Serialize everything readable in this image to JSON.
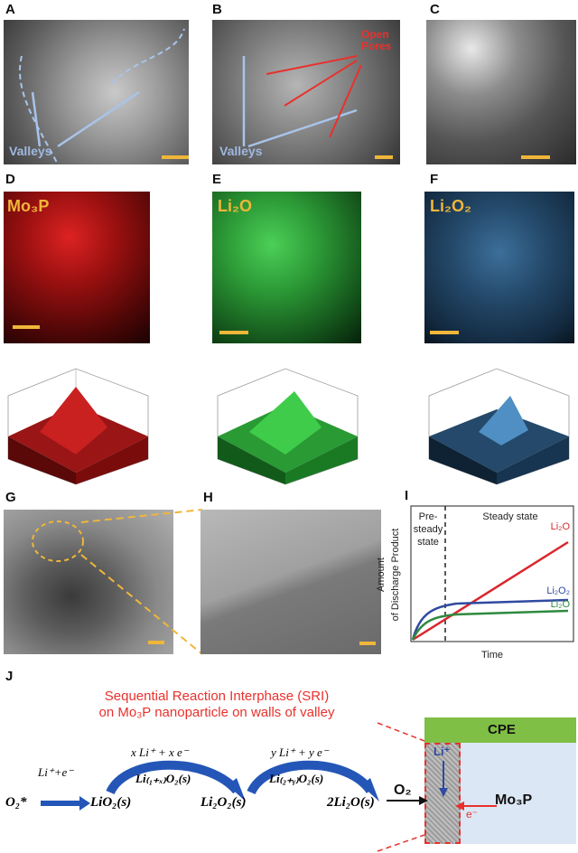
{
  "panels": {
    "a": {
      "label": "A",
      "valleys": "Valleys"
    },
    "b": {
      "label": "B",
      "valleys": "Valleys",
      "pores_line1": "Open",
      "pores_line2": "Pores"
    },
    "c": {
      "label": "C"
    },
    "d": {
      "label": "D",
      "element": "Mo₃P"
    },
    "e": {
      "label": "E",
      "element": "Li₂O"
    },
    "f": {
      "label": "F",
      "element": "Li₂O₂"
    },
    "g": {
      "label": "G"
    },
    "h": {
      "label": "H"
    },
    "i": {
      "label": "I"
    },
    "j": {
      "label": "J"
    }
  },
  "chart_data": {
    "type": "line",
    "ylabel_line1": "Amount",
    "ylabel_line2": "of Discharge Product",
    "xlabel": "Time",
    "regions": [
      "Pre-steady state",
      "Steady state"
    ],
    "region_line1": "Pre-",
    "region_line2": "steady",
    "region_line3": "state",
    "series": [
      {
        "name": "Li₂O",
        "color": "#d9262c"
      },
      {
        "name": "Li₂O₂",
        "color": "#2f4aa0"
      },
      {
        "name": "Li₂O",
        "color": "#2e8a3e"
      }
    ]
  },
  "scheme": {
    "title_line1": "Sequential Reaction Interphase (SRI)",
    "title_line2": "on Mo₃P nanoparticle on walls of valley",
    "o2star": "O₂*",
    "step1_reagent": "Li⁺+e⁻",
    "lio2": "LiO₂(s)",
    "step2_reagent": "x Li⁺ + x e⁻",
    "step2_intermediate": "Li₍₁₊ₓ₎O₂(s)",
    "li2o2": "Li₂O₂(s)",
    "step3_reagent": "y Li⁺ + y e⁻",
    "step3_intermediate": "Li₍₂₊ᵧ₎O₂(s)",
    "li2o": "2Li₂O(s)",
    "cpe": "CPE",
    "li_plus": "Li⁺",
    "o2": "O₂",
    "mo3p": "Mo₃P",
    "electron": "e⁻"
  },
  "colors": {
    "scale_bar": "#f0b63a",
    "mo3p": "#c01818",
    "li2o": "#2fa83a",
    "li2o2": "#3a7fc0"
  }
}
